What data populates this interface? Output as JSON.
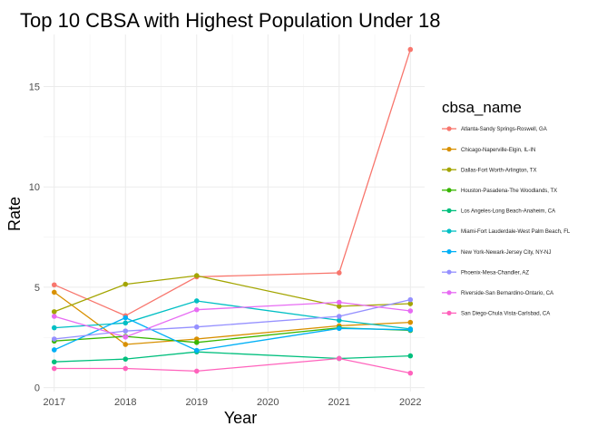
{
  "chart_data": {
    "type": "line",
    "title": "Top 10 CBSA with Highest Population Under 18",
    "xlabel": "Year",
    "ylabel": "Rate",
    "legend_title": "cbsa_name",
    "legend_position": "right",
    "grid": true,
    "xlim": [
      2016.85,
      2022.2
    ],
    "ylim": [
      -0.2,
      17.6
    ],
    "x_ticks": [
      2017,
      2018,
      2019,
      2020,
      2021,
      2022
    ],
    "y_ticks": [
      0,
      5,
      10,
      15
    ],
    "x": [
      2017,
      2018,
      2019,
      2021,
      2022
    ],
    "series": [
      {
        "name": "Atlanta-Sandy Springs-Roswell, GA",
        "color": "#F8766D",
        "values": [
          5.12,
          3.58,
          5.52,
          5.72,
          16.85
        ]
      },
      {
        "name": "Chicago-Naperville-Elgin, IL-IN",
        "color": "#D89000",
        "values": [
          4.75,
          2.15,
          2.42,
          3.08,
          3.25
        ]
      },
      {
        "name": "Dallas-Fort Worth-Arlington, TX",
        "color": "#A3A500",
        "values": [
          3.78,
          5.15,
          5.58,
          4.05,
          4.18
        ]
      },
      {
        "name": "Houston-Pasadena-The Woodlands, TX",
        "color": "#39B600",
        "values": [
          2.32,
          2.55,
          2.25,
          2.98,
          2.85
        ]
      },
      {
        "name": "Los Angeles-Long Beach-Anaheim, CA",
        "color": "#00BF7D",
        "values": [
          1.28,
          1.42,
          1.78,
          1.45,
          1.58
        ]
      },
      {
        "name": "Miami-Fort Lauderdale-West Palm Beach, FL",
        "color": "#00BFC4",
        "values": [
          2.98,
          3.22,
          4.32,
          3.35,
          2.92
        ]
      },
      {
        "name": "New York-Newark-Jersey City, NY-NJ",
        "color": "#00B0F6",
        "values": [
          1.88,
          3.48,
          1.85,
          2.95,
          2.88
        ]
      },
      {
        "name": "Phoenix-Mesa-Chandler, AZ",
        "color": "#9590FF",
        "values": [
          2.42,
          2.82,
          3.02,
          3.55,
          4.38
        ]
      },
      {
        "name": "Riverside-San Bernardino-Ontario, CA",
        "color": "#E76BF3",
        "values": [
          3.55,
          2.52,
          3.88,
          4.25,
          3.82
        ]
      },
      {
        "name": "San Diego-Chula Vista-Carlsbad, CA",
        "color": "#FF62BC",
        "values": [
          0.95,
          0.95,
          0.82,
          1.45,
          0.72
        ]
      }
    ]
  }
}
